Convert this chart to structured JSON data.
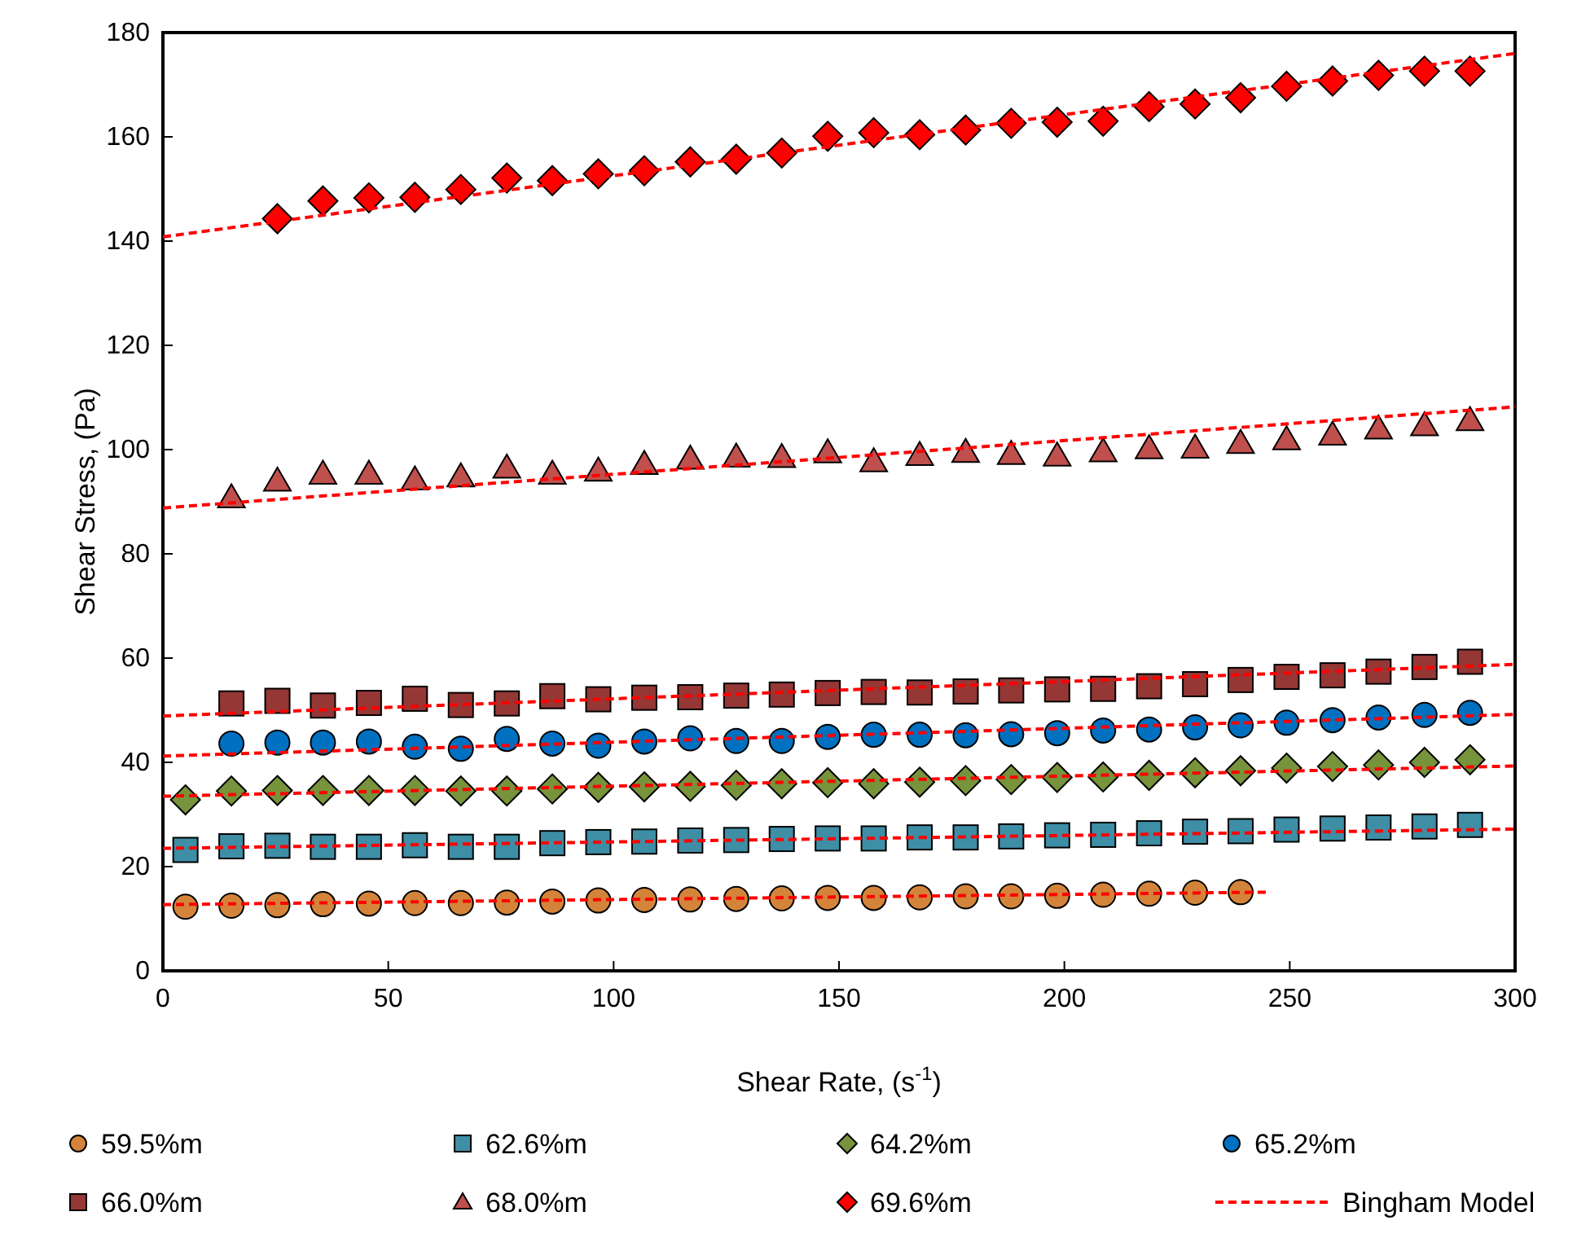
{
  "chart_data": {
    "type": "scatter",
    "xlabel": "Shear Rate, (s$^{-1}$)",
    "ylabel": "Shear Stress, (Pa)",
    "xlim": [
      0,
      300
    ],
    "xticks": [
      0,
      50,
      100,
      150,
      200,
      250,
      300
    ],
    "ylim": [
      0,
      180
    ],
    "yticks": [
      0,
      20,
      40,
      60,
      80,
      100,
      120,
      140,
      160,
      180
    ],
    "grid": false,
    "legend": "bottom",
    "series": [
      {
        "name": "59.5%m",
        "marker": "circle",
        "color": "#d4843a",
        "x": [
          5,
          15.2,
          25.4,
          35.5,
          45.7,
          55.9,
          66.1,
          76.3,
          86.4,
          96.6,
          106.8,
          117,
          127.2,
          137.3,
          147.5,
          157.7,
          167.9,
          178.1,
          188.2,
          198.4,
          208.6,
          218.8,
          229,
          239.1
        ],
        "values": [
          12.3,
          12.5,
          12.6,
          12.8,
          12.9,
          13,
          13,
          13.1,
          13.3,
          13.5,
          13.6,
          13.7,
          13.8,
          13.9,
          14,
          14,
          14.1,
          14.3,
          14.3,
          14.4,
          14.6,
          14.8,
          15,
          15.1
        ]
      },
      {
        "name": "62.6%m",
        "marker": "square",
        "color": "#3e8ea6",
        "x": [
          5,
          15.2,
          25.4,
          35.5,
          45.7,
          55.9,
          66.1,
          76.3,
          86.4,
          96.6,
          106.8,
          117,
          127.2,
          137.3,
          147.5,
          157.7,
          167.9,
          178.1,
          188.2,
          198.4,
          208.6,
          218.8,
          229,
          239.1,
          249.3,
          259.5,
          269.7,
          279.9,
          290
        ],
        "values": [
          23.2,
          23.9,
          24,
          23.8,
          23.8,
          24.1,
          23.8,
          23.8,
          24.5,
          24.7,
          24.8,
          25,
          25.1,
          25.3,
          25.4,
          25.4,
          25.6,
          25.6,
          25.8,
          26,
          26.1,
          26.4,
          26.7,
          26.8,
          27.1,
          27.3,
          27.5,
          27.7,
          28
        ]
      },
      {
        "name": "64.2%m",
        "marker": "diamond",
        "color": "#77933c",
        "x": [
          5,
          15.2,
          25.4,
          35.5,
          45.7,
          55.9,
          66.1,
          76.3,
          86.4,
          96.6,
          106.8,
          117,
          127.2,
          137.3,
          147.5,
          157.7,
          167.9,
          178.1,
          188.2,
          198.4,
          208.6,
          218.8,
          229,
          239.1,
          249.3,
          259.5,
          269.7,
          279.9,
          290
        ],
        "values": [
          32.8,
          34.5,
          34.6,
          34.6,
          34.6,
          34.6,
          34.5,
          34.5,
          34.9,
          35.2,
          35.3,
          35.4,
          35.6,
          35.9,
          36.1,
          35.9,
          36.2,
          36.5,
          36.7,
          37.1,
          37.2,
          37.5,
          38,
          38.4,
          38.9,
          39.2,
          39.5,
          40,
          40.5
        ]
      },
      {
        "name": "65.2%m",
        "marker": "circle",
        "color": "#0070c0",
        "x": [
          15.2,
          25.4,
          35.5,
          45.7,
          55.9,
          66.1,
          76.3,
          86.4,
          96.6,
          106.8,
          117,
          127.2,
          137.3,
          147.5,
          157.7,
          167.9,
          178.1,
          188.2,
          198.4,
          208.6,
          218.8,
          229,
          239.1,
          249.3,
          259.5,
          269.7,
          279.9,
          290
        ],
        "values": [
          43.6,
          43.8,
          43.8,
          44,
          43,
          42.6,
          44.5,
          43.6,
          43.2,
          44,
          44.6,
          44.1,
          44.1,
          44.9,
          45.3,
          45.3,
          45.2,
          45.4,
          45.6,
          46.1,
          46.3,
          46.7,
          47.1,
          47.6,
          48.1,
          48.6,
          49.1,
          49.5
        ]
      },
      {
        "name": "66.0%m",
        "marker": "square",
        "color": "#953735",
        "x": [
          15.2,
          25.4,
          35.5,
          45.7,
          55.9,
          66.1,
          76.3,
          86.4,
          96.6,
          106.8,
          117,
          127.2,
          137.3,
          147.5,
          157.7,
          167.9,
          178.1,
          188.2,
          198.4,
          208.6,
          218.8,
          229,
          239.1,
          249.3,
          259.5,
          269.7,
          279.9,
          290
        ],
        "values": [
          51.3,
          51.8,
          50.9,
          51.4,
          52.2,
          51,
          51.3,
          52.7,
          52.1,
          52.4,
          52.5,
          52.8,
          53,
          53.3,
          53.5,
          53.4,
          53.6,
          53.8,
          54,
          54.1,
          54.6,
          55,
          55.8,
          56.4,
          56.7,
          57.4,
          58.3,
          59.3
        ]
      },
      {
        "name": "68.0%m",
        "marker": "triangle",
        "color": "#c0504d",
        "x": [
          15.2,
          25.4,
          35.5,
          45.7,
          55.9,
          66.1,
          76.3,
          86.4,
          96.6,
          106.8,
          117,
          127.2,
          137.3,
          147.5,
          157.7,
          167.9,
          178.1,
          188.2,
          198.4,
          208.6,
          218.8,
          229,
          239.1,
          249.3,
          259.5,
          269.7,
          279.9,
          290
        ],
        "values": [
          90.8,
          94,
          95.3,
          95.3,
          94.2,
          94.8,
          96.5,
          95.3,
          95.9,
          97.2,
          98.2,
          98.6,
          98.5,
          99.4,
          97.7,
          98.9,
          99.5,
          99.1,
          98.8,
          99.6,
          100.2,
          100.3,
          101.2,
          101.9,
          102.8,
          104,
          104.6,
          105.6
        ]
      },
      {
        "name": "69.6%m",
        "marker": "diamond",
        "color": "#ff0000",
        "x": [
          25.4,
          35.5,
          45.7,
          55.9,
          66.1,
          76.3,
          86.4,
          96.6,
          106.8,
          117,
          127.2,
          137.3,
          147.5,
          157.7,
          167.9,
          178.1,
          188.2,
          198.4,
          208.6,
          218.8,
          229,
          239.1,
          249.3,
          259.5,
          269.7,
          279.9,
          290
        ],
        "values": [
          144.3,
          147.7,
          148.3,
          148.4,
          149.9,
          152.1,
          151.6,
          152.9,
          153.5,
          155.2,
          155.7,
          156.9,
          160.1,
          160.8,
          160.4,
          161.3,
          162.6,
          162.8,
          163,
          165.8,
          166.3,
          167.5,
          169.7,
          170.7,
          171.8,
          172.6,
          172.6
        ]
      },
      {
        "name": "Bingham Model",
        "type": "line",
        "line_style": "dashed",
        "color": "#ff0000",
        "x": [
          0,
          245
        ],
        "values": [
          12.7,
          15.1
        ]
      },
      {
        "type": "line",
        "line_style": "dashed",
        "color": "#ff0000",
        "x": [
          0,
          300
        ],
        "values": [
          23.5,
          27.2
        ]
      },
      {
        "type": "line",
        "line_style": "dashed",
        "color": "#ff0000",
        "x": [
          0,
          300
        ],
        "values": [
          33.5,
          39.3
        ]
      },
      {
        "type": "line",
        "line_style": "dashed",
        "color": "#ff0000",
        "x": [
          0,
          300
        ],
        "values": [
          41.2,
          49.2
        ]
      },
      {
        "type": "line",
        "line_style": "dashed",
        "color": "#ff0000",
        "x": [
          0,
          300
        ],
        "values": [
          48.9,
          58.8
        ]
      },
      {
        "type": "line",
        "line_style": "dashed",
        "color": "#ff0000",
        "x": [
          0,
          300
        ],
        "values": [
          88.8,
          108.2
        ]
      },
      {
        "type": "line",
        "line_style": "dashed",
        "color": "#ff0000",
        "x": [
          0,
          300
        ],
        "values": [
          140.8,
          176
        ]
      }
    ]
  }
}
